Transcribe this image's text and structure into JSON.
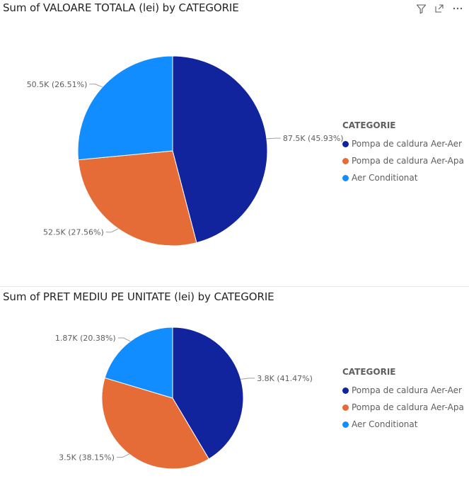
{
  "toolbar": {
    "icons": [
      "filter-icon",
      "focus-mode-icon",
      "more-options-icon"
    ],
    "more_label": "···"
  },
  "chart_data": [
    {
      "type": "pie",
      "title": "Sum of VALOARE TOTALA (lei) by CATEGORIE",
      "legend_title": "CATEGORIE",
      "legend_placement": "right",
      "categories": [
        "Pompa de caldura Aer-Aer",
        "Pompa de caldura Aer-Apa",
        "Aer Conditionat"
      ],
      "values": [
        87500,
        52500,
        50500
      ],
      "percentages": [
        45.93,
        27.56,
        26.51
      ],
      "data_labels": [
        "87.5K (45.93%)",
        "52.5K (27.56%)",
        "50.5K (26.51%)"
      ],
      "colors": [
        "#12239e",
        "#e66c37",
        "#118dff"
      ]
    },
    {
      "type": "pie",
      "title": "Sum of PRET MEDIU PE UNITATE (lei) by CATEGORIE",
      "legend_title": "CATEGORIE",
      "legend_placement": "right",
      "categories": [
        "Pompa de caldura Aer-Aer",
        "Pompa de caldura Aer-Apa",
        "Aer Conditionat"
      ],
      "values": [
        3800,
        3500,
        1870
      ],
      "percentages": [
        41.47,
        38.15,
        20.38
      ],
      "data_labels": [
        "3.8K (41.47%)",
        "3.5K (38.15%)",
        "1.87K (20.38%)"
      ],
      "colors": [
        "#12239e",
        "#e66c37",
        "#118dff"
      ]
    }
  ]
}
